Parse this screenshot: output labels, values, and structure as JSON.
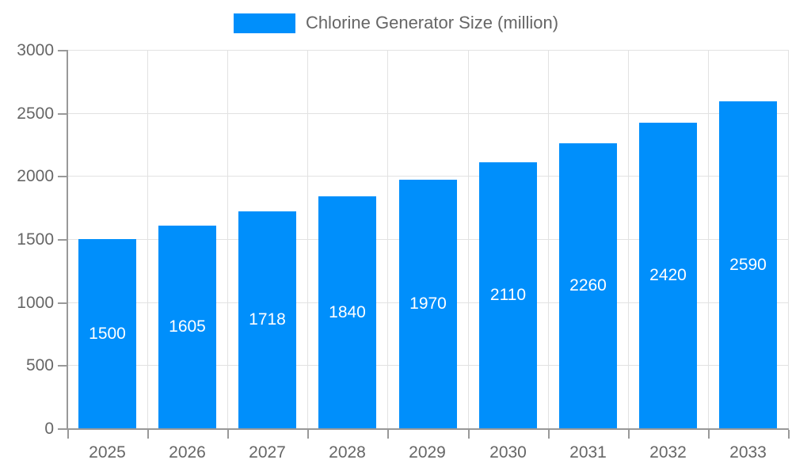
{
  "chart_data": {
    "type": "bar",
    "title": "Chlorine Generator Size (million)",
    "legend": [
      "Chlorine Generator Size (million)"
    ],
    "legend_position": "top-center",
    "categories": [
      "2025",
      "2026",
      "2027",
      "2028",
      "2029",
      "2030",
      "2031",
      "2032",
      "2033"
    ],
    "values": [
      1500,
      1605,
      1718,
      1840,
      1970,
      2110,
      2260,
      2420,
      2590
    ],
    "value_labels_shown": true,
    "xlabel": "",
    "ylabel": "",
    "ylim": [
      0,
      3000
    ],
    "ytick_step": 500,
    "yticks": [
      0,
      500,
      1000,
      1500,
      2000,
      2500,
      3000
    ],
    "grid": true,
    "colors": {
      "bar": "#008ffb",
      "value_label": "#ffffff",
      "axis": "#999999",
      "gridline": "#e2e2e2",
      "tick_label": "#666666",
      "legend_text": "#666666",
      "background": "#ffffff"
    }
  }
}
